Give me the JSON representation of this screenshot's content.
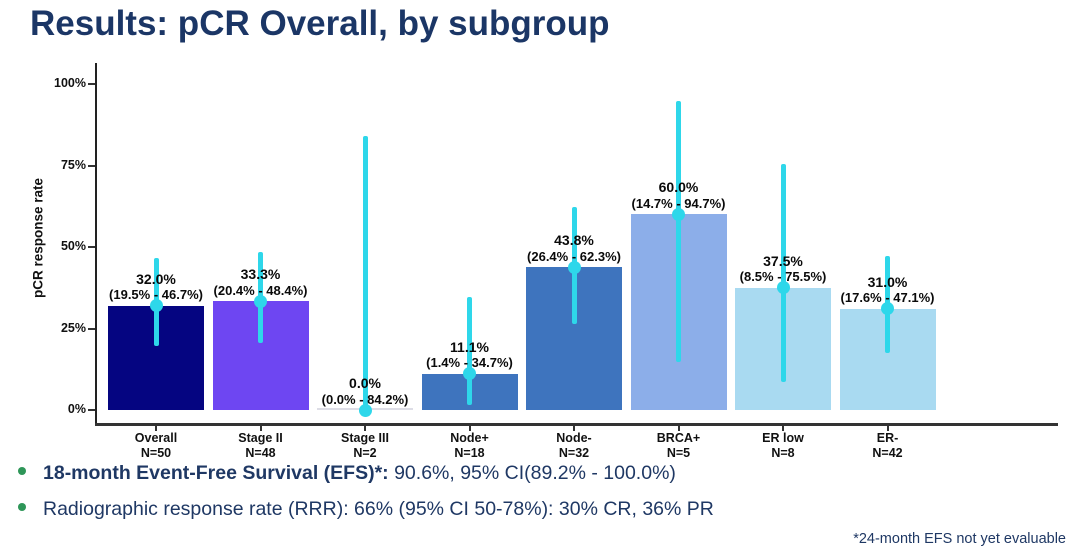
{
  "title": "Results: pCR Overall, by subgroup",
  "chart_data": {
    "type": "bar",
    "title": "Results: pCR Overall, by subgroup",
    "xlabel": "",
    "ylabel": "pCR response rate",
    "ylim": [
      0,
      100
    ],
    "yticks": [
      {
        "value": 0,
        "label": "0%"
      },
      {
        "value": 25,
        "label": "25%"
      },
      {
        "value": 50,
        "label": "50%"
      },
      {
        "value": 75,
        "label": "75%"
      },
      {
        "value": 100,
        "label": "100%"
      }
    ],
    "grid": false,
    "legend": "none",
    "error_bar_color": "#2ED7EA",
    "groups": [
      {
        "label": "Overall",
        "n_label": "N=50",
        "value": 32.0,
        "value_label": "32.0%",
        "ci_low": 19.5,
        "ci_high": 46.7,
        "ci_label": "(19.5% - 46.7%)",
        "color": "#050581"
      },
      {
        "label": "Stage II",
        "n_label": "N=48",
        "value": 33.3,
        "value_label": "33.3%",
        "ci_low": 20.4,
        "ci_high": 48.4,
        "ci_label": "(20.4% - 48.4%)",
        "color": "#6E46F2"
      },
      {
        "label": "Stage III",
        "n_label": "N=2",
        "value": 0.0,
        "value_label": "0.0%",
        "ci_low": 0.0,
        "ci_high": 84.2,
        "ci_label": "(0.0% - 84.2%)",
        "color": "#DDDDE6"
      },
      {
        "label": "Node+",
        "n_label": "N=18",
        "value": 11.1,
        "value_label": "11.1%",
        "ci_low": 1.4,
        "ci_high": 34.7,
        "ci_label": "(1.4% - 34.7%)",
        "color": "#3E74BE"
      },
      {
        "label": "Node-",
        "n_label": "N=32",
        "value": 43.8,
        "value_label": "43.8%",
        "ci_low": 26.4,
        "ci_high": 62.3,
        "ci_label": "(26.4% - 62.3%)",
        "color": "#3E74BE"
      },
      {
        "label": "BRCA+",
        "n_label": "N=5",
        "value": 60.0,
        "value_label": "60.0%",
        "ci_low": 14.7,
        "ci_high": 94.7,
        "ci_label": "(14.7% - 94.7%)",
        "color": "#8CAEE9"
      },
      {
        "label": "ER low",
        "n_label": "N=8",
        "value": 37.5,
        "value_label": "37.5%",
        "ci_low": 8.5,
        "ci_high": 75.5,
        "ci_label": "(8.5% - 75.5%)",
        "color": "#A9DAF1"
      },
      {
        "label": "ER-",
        "n_label": "N=42",
        "value": 31.0,
        "value_label": "31.0%",
        "ci_low": 17.6,
        "ci_high": 47.1,
        "ci_label": "(17.6% - 47.1%)",
        "color": "#A9DAF1"
      }
    ]
  },
  "bullets": [
    {
      "bold": "18-month Event-Free Survival (EFS)*:",
      "rest": " 90.6%, 95% CI(89.2% - 100.0%)"
    },
    {
      "bold": "",
      "rest": "Radiographic response rate (RRR): 66% (95% CI 50-78%): 30% CR, 36% PR"
    }
  ],
  "bullet_color": "#2E9658",
  "footnote": "*24-month EFS not yet evaluable"
}
